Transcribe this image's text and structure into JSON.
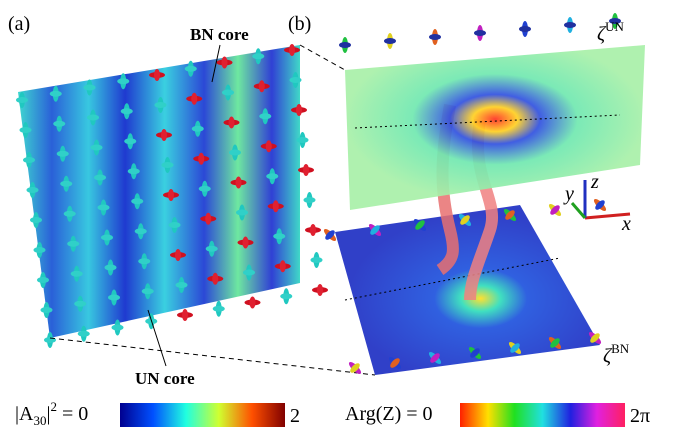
{
  "panels": [
    {
      "label": "(a)",
      "annotations": [
        "BN core",
        "UN core"
      ]
    },
    {
      "label": "(b)",
      "planes": [
        {
          "symbol": "ζ",
          "superscript": "UN"
        },
        {
          "symbol": "ζ",
          "superscript": "BN"
        }
      ],
      "axes": [
        "x",
        "y",
        "z"
      ]
    }
  ],
  "colorbars": [
    {
      "label": {
        "base": "|A",
        "subscript": "30",
        "close": "|",
        "superscript": "2",
        "rest": " = 0"
      },
      "max": "2"
    },
    {
      "label": "Arg(Z) = 0",
      "max": "2π"
    }
  ]
}
